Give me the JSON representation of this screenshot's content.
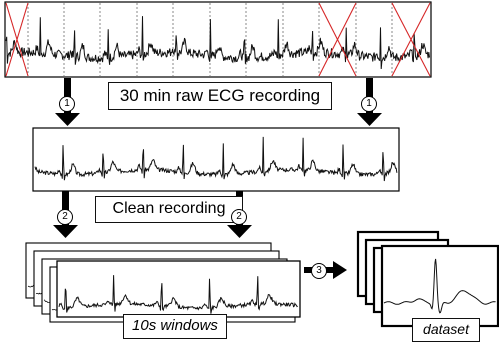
{
  "labels": {
    "raw": "30 min raw ECG recording",
    "clean": "Clean recording",
    "windows": "10s windows",
    "dataset": "dataset"
  },
  "steps": [
    "1",
    "2",
    "3"
  ],
  "colors": {
    "signal": "#111111",
    "rejected": "#d62728",
    "segment_divider": "#888888",
    "arrow": "#000000"
  }
}
